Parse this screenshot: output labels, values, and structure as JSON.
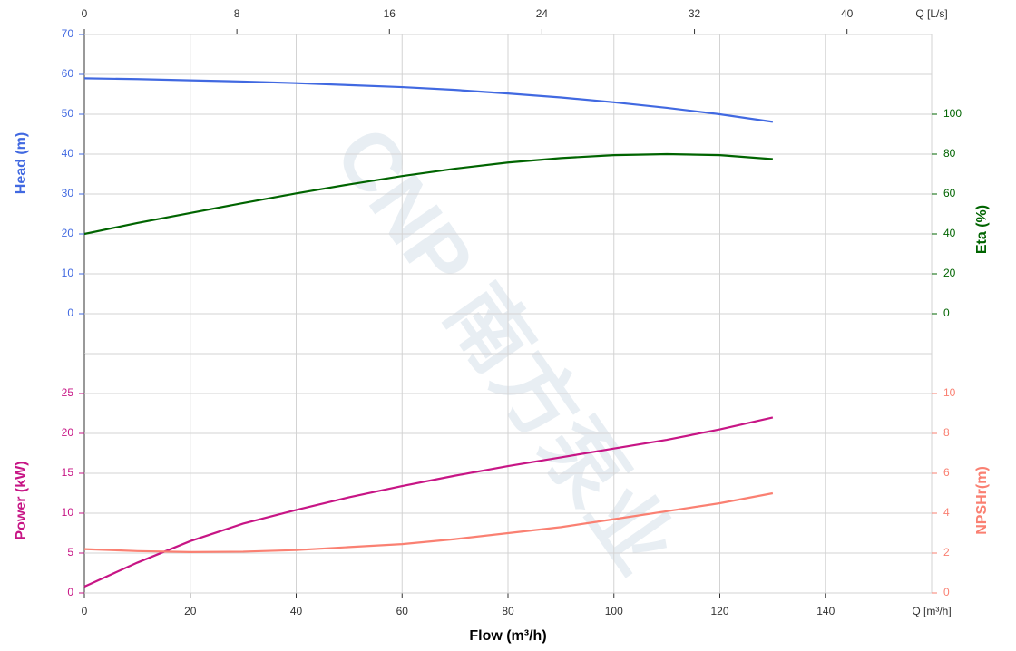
{
  "chart_data": {
    "type": "line",
    "watermark": "CNP 南方泵业",
    "x": [
      0,
      10,
      20,
      30,
      40,
      50,
      60,
      70,
      80,
      90,
      100,
      110,
      120,
      130
    ],
    "xlim": [
      0,
      160
    ],
    "xticks": [
      0,
      20,
      40,
      60,
      80,
      100,
      120,
      140
    ],
    "xlabel": "Flow (m³/h)",
    "xunit": "Q [m³/h]",
    "x2lim": [
      0,
      44.44
    ],
    "x2ticks": [
      0,
      8,
      16,
      24,
      32,
      40
    ],
    "x2unit": "Q [L/s]",
    "grid": true,
    "panels": [
      {
        "ylabel": "Head (m)",
        "y2label": "Eta (%)",
        "ylim": [
          -10,
          70
        ],
        "yticks": [
          0,
          10,
          20,
          30,
          40,
          50,
          60,
          70
        ],
        "y2lim": [
          -20,
          140
        ],
        "y2ticks": [
          0,
          20,
          40,
          60,
          80,
          100
        ],
        "series": [
          {
            "name": "Head (m)",
            "color": "#4169e1",
            "values": [
              59,
              58.8,
              58.5,
              58.2,
              57.8,
              57.3,
              56.8,
              56.1,
              55.2,
              54.2,
              53.0,
              51.6,
              50.0,
              48.1
            ]
          },
          {
            "name": "Eta (%)",
            "color": "#006400",
            "axis": "y2",
            "values": [
              40,
              45.5,
              50.5,
              55.5,
              60.3,
              64.8,
              69,
              72.7,
              75.8,
              78,
              79.5,
              80,
              79.5,
              77.5
            ]
          }
        ]
      },
      {
        "ylabel": "Power (kW)",
        "y2label": "NPSHr(m)",
        "ylim": [
          0,
          30
        ],
        "yticks": [
          0,
          5,
          10,
          15,
          20,
          25
        ],
        "y2lim": [
          0,
          12
        ],
        "y2ticks": [
          0,
          2,
          4,
          6,
          8,
          10
        ],
        "series": [
          {
            "name": "Power (kW)",
            "color": "#c71585",
            "values": [
              0.8,
              3.8,
              6.5,
              8.7,
              10.4,
              12,
              13.4,
              14.7,
              15.9,
              17,
              18.1,
              19.2,
              20.5,
              22
            ]
          },
          {
            "name": "NPSHr(m)",
            "color": "#fa8072",
            "axis": "y2",
            "values": [
              2.2,
              2.1,
              2.05,
              2.07,
              2.15,
              2.3,
              2.45,
              2.7,
              3.0,
              3.3,
              3.7,
              4.1,
              4.5,
              5.0
            ]
          }
        ]
      }
    ]
  }
}
